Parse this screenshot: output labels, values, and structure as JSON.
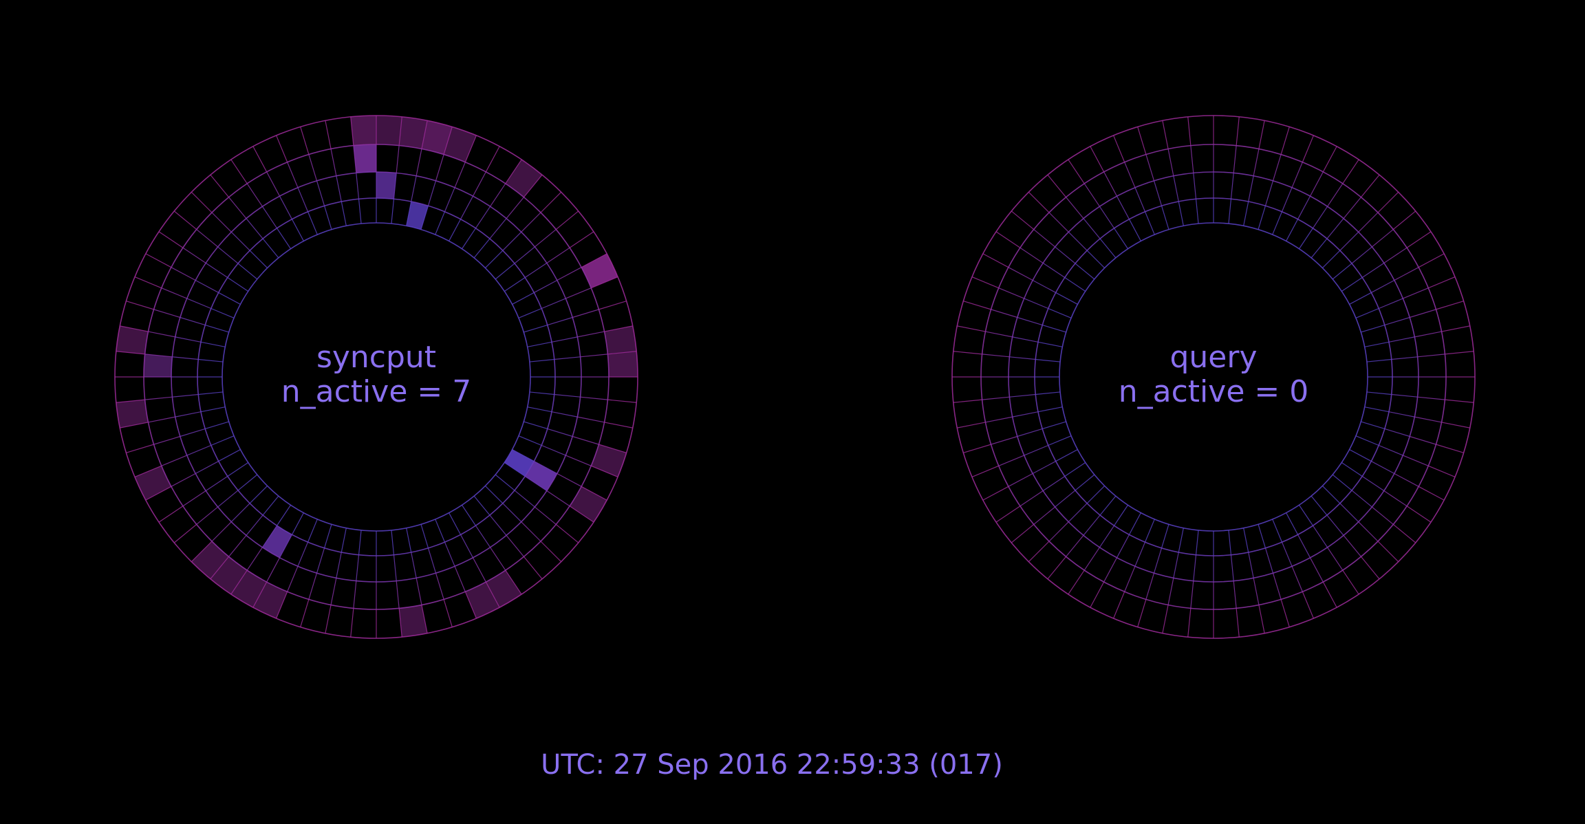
{
  "colors": {
    "background": "#000000",
    "text": "#8a70f0",
    "grid_inner": "#5a42c8",
    "grid_outer": "#a02c9c",
    "active_inner": "#5a3ec4",
    "active_outer": "#8e2a94"
  },
  "grid": {
    "sectors": 64,
    "rings": 4
  },
  "panels": [
    {
      "name": "syncput",
      "active_text": "n_active = 7",
      "active_cells": [
        {
          "sector": 63,
          "ring": 3,
          "level": 0.55
        },
        {
          "sector": 0,
          "ring": 3,
          "level": 0.45
        },
        {
          "sector": 1,
          "ring": 3,
          "level": 0.5
        },
        {
          "sector": 2,
          "ring": 3,
          "level": 0.6
        },
        {
          "sector": 3,
          "ring": 3,
          "level": 0.45
        },
        {
          "sector": 63,
          "ring": 2,
          "level": 0.85
        },
        {
          "sector": 0,
          "ring": 1,
          "level": 0.75
        },
        {
          "sector": 2,
          "ring": 0,
          "level": 0.8
        },
        {
          "sector": 6,
          "ring": 3,
          "level": 0.45
        },
        {
          "sector": 11,
          "ring": 3,
          "level": 0.85
        },
        {
          "sector": 14,
          "ring": 3,
          "level": 0.45
        },
        {
          "sector": 15,
          "ring": 3,
          "level": 0.5
        },
        {
          "sector": 19,
          "ring": 3,
          "level": 0.45
        },
        {
          "sector": 21,
          "ring": 3,
          "level": 0.45
        },
        {
          "sector": 21,
          "ring": 1,
          "level": 0.9
        },
        {
          "sector": 21,
          "ring": 0,
          "level": 0.9
        },
        {
          "sector": 26,
          "ring": 3,
          "level": 0.45
        },
        {
          "sector": 27,
          "ring": 3,
          "level": 0.45
        },
        {
          "sector": 30,
          "ring": 3,
          "level": 0.45
        },
        {
          "sector": 36,
          "ring": 3,
          "level": 0.45
        },
        {
          "sector": 37,
          "ring": 3,
          "level": 0.45
        },
        {
          "sector": 37,
          "ring": 1,
          "level": 0.8
        },
        {
          "sector": 38,
          "ring": 3,
          "level": 0.45
        },
        {
          "sector": 39,
          "ring": 3,
          "level": 0.45
        },
        {
          "sector": 43,
          "ring": 3,
          "level": 0.45
        },
        {
          "sector": 46,
          "ring": 3,
          "level": 0.45
        },
        {
          "sector": 48,
          "ring": 2,
          "level": 0.55
        },
        {
          "sector": 49,
          "ring": 3,
          "level": 0.45
        }
      ]
    },
    {
      "name": "query",
      "active_text": "n_active = 0",
      "active_cells": []
    }
  ],
  "footer": {
    "utc_text": "UTC: 27 Sep 2016 22:59:33 (017)"
  }
}
